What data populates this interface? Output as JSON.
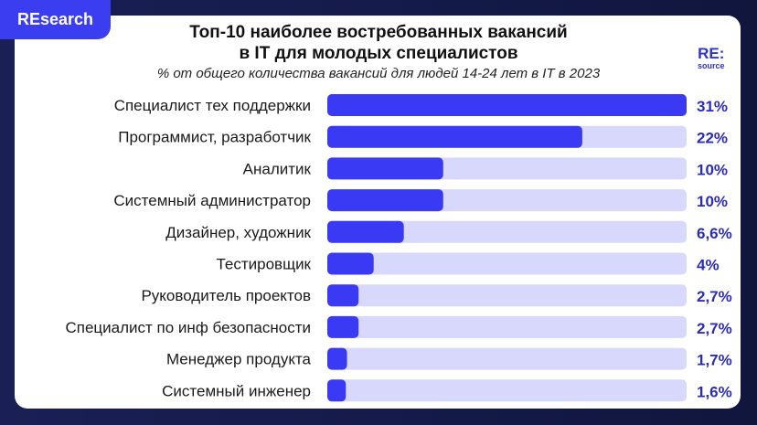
{
  "brand": {
    "tab_label": "REsearch",
    "logo_top": "RE:",
    "logo_bottom": "source"
  },
  "colors": {
    "bar": "#3a3af5",
    "track": "#d7d8fb",
    "value_label": "#2c2db5",
    "accent": "#3b3df0"
  },
  "chart_data": {
    "type": "bar",
    "orientation": "horizontal",
    "title_line1": "Топ-10 наиболее востребованных вакансий",
    "title_line2": "в IT для молодых специалистов",
    "subtitle": "% от общего количества вакансий для людей 14-24 лет в IT в 2023",
    "categories": [
      "Специалист тех поддержки",
      "Программист, разработчик",
      "Аналитик",
      "Системный администратор",
      "Дизайнер, художник",
      "Тестировщик",
      "Руководитель проектов",
      "Специалист по инф безопасности",
      "Менеджер продукта",
      "Системный инженер"
    ],
    "values": [
      31,
      22,
      10,
      10,
      6.6,
      4,
      2.7,
      2.7,
      1.7,
      1.6
    ],
    "value_labels": [
      "31%",
      "22%",
      "10%",
      "10%",
      "6,6%",
      "4%",
      "2,7%",
      "2,7%",
      "1,7%",
      "1,6%"
    ],
    "xlim": [
      0,
      31
    ],
    "grid": false
  }
}
